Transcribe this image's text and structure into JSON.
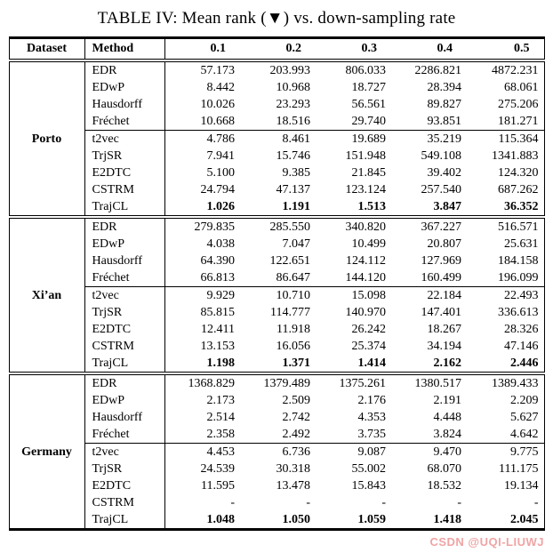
{
  "title": {
    "text": "TABLE IV: Mean rank (▼) vs. down-sampling rate"
  },
  "watermark": {
    "text": "CSDN @UQI-LIUWJ",
    "color": "#f0a4a4"
  },
  "table": {
    "columns": [
      "Dataset",
      "Method",
      "0.1",
      "0.2",
      "0.3",
      "0.4",
      "0.5"
    ],
    "sections": [
      {
        "dataset": "Porto",
        "rows": [
          {
            "method": "EDR",
            "values": [
              "57.173",
              "203.993",
              "806.033",
              "2286.821",
              "4872.231"
            ]
          },
          {
            "method": "EDwP",
            "values": [
              "8.442",
              "10.968",
              "18.727",
              "28.394",
              "68.061"
            ]
          },
          {
            "method": "Hausdorff",
            "values": [
              "10.026",
              "23.293",
              "56.561",
              "89.827",
              "275.206"
            ]
          },
          {
            "method": "Fréchet",
            "values": [
              "10.668",
              "18.516",
              "29.740",
              "93.851",
              "181.271"
            ]
          },
          {
            "method": "t2vec",
            "values": [
              "4.786",
              "8.461",
              "19.689",
              "35.219",
              "115.364"
            ],
            "rule_above": true
          },
          {
            "method": "TrjSR",
            "values": [
              "7.941",
              "15.746",
              "151.948",
              "549.108",
              "1341.883"
            ]
          },
          {
            "method": "E2DTC",
            "values": [
              "5.100",
              "9.385",
              "21.845",
              "39.402",
              "124.320"
            ]
          },
          {
            "method": "CSTRM",
            "values": [
              "24.794",
              "47.137",
              "123.124",
              "257.540",
              "687.262"
            ]
          },
          {
            "method": "TrajCL",
            "values": [
              "1.026",
              "1.191",
              "1.513",
              "3.847",
              "36.352"
            ],
            "bold_values": true
          }
        ]
      },
      {
        "dataset": "Xi’an",
        "rows": [
          {
            "method": "EDR",
            "values": [
              "279.835",
              "285.550",
              "340.820",
              "367.227",
              "516.571"
            ]
          },
          {
            "method": "EDwP",
            "values": [
              "4.038",
              "7.047",
              "10.499",
              "20.807",
              "25.631"
            ]
          },
          {
            "method": "Hausdorff",
            "values": [
              "64.390",
              "122.651",
              "124.112",
              "127.969",
              "184.158"
            ]
          },
          {
            "method": "Fréchet",
            "values": [
              "66.813",
              "86.647",
              "144.120",
              "160.499",
              "196.099"
            ]
          },
          {
            "method": "t2vec",
            "values": [
              "9.929",
              "10.710",
              "15.098",
              "22.184",
              "22.493"
            ],
            "rule_above": true
          },
          {
            "method": "TrjSR",
            "values": [
              "85.815",
              "114.777",
              "140.970",
              "147.401",
              "336.613"
            ]
          },
          {
            "method": "E2DTC",
            "values": [
              "12.411",
              "11.918",
              "26.242",
              "18.267",
              "28.326"
            ]
          },
          {
            "method": "CSTRM",
            "values": [
              "13.153",
              "16.056",
              "25.374",
              "34.194",
              "47.146"
            ]
          },
          {
            "method": "TrajCL",
            "values": [
              "1.198",
              "1.371",
              "1.414",
              "2.162",
              "2.446"
            ],
            "bold_values": true
          }
        ]
      },
      {
        "dataset": "Germany",
        "rows": [
          {
            "method": "EDR",
            "values": [
              "1368.829",
              "1379.489",
              "1375.261",
              "1380.517",
              "1389.433"
            ]
          },
          {
            "method": "EDwP",
            "values": [
              "2.173",
              "2.509",
              "2.176",
              "2.191",
              "2.209"
            ]
          },
          {
            "method": "Hausdorff",
            "values": [
              "2.514",
              "2.742",
              "4.353",
              "4.448",
              "5.627"
            ]
          },
          {
            "method": "Fréchet",
            "values": [
              "2.358",
              "2.492",
              "3.735",
              "3.824",
              "4.642"
            ]
          },
          {
            "method": "t2vec",
            "values": [
              "4.453",
              "6.736",
              "9.087",
              "9.470",
              "9.775"
            ],
            "rule_above": true
          },
          {
            "method": "TrjSR",
            "values": [
              "24.539",
              "30.318",
              "55.002",
              "68.070",
              "111.175"
            ]
          },
          {
            "method": "E2DTC",
            "values": [
              "11.595",
              "13.478",
              "15.843",
              "18.532",
              "19.134"
            ]
          },
          {
            "method": "CSTRM",
            "values": [
              "-",
              "-",
              "-",
              "-",
              "-"
            ]
          },
          {
            "method": "TrajCL",
            "values": [
              "1.048",
              "1.050",
              "1.059",
              "1.418",
              "2.045"
            ],
            "bold_values": true
          }
        ]
      }
    ]
  }
}
